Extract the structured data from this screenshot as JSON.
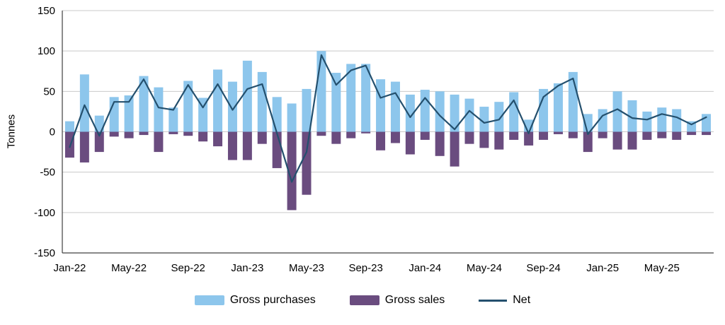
{
  "chart_data": {
    "type": "bar",
    "title": "",
    "ylabel": "Tonnes",
    "ylim": [
      -150,
      150
    ],
    "y_ticks": [
      150,
      100,
      50,
      0,
      -50,
      -100,
      -150
    ],
    "x_tick_every": 4,
    "x_tick_labels": [
      "Jan-22",
      "May-22",
      "Sep-22",
      "Jan-23",
      "May-23",
      "Sep-23",
      "Jan-24",
      "May-24",
      "Sep-24",
      "Jan-25",
      "May-25"
    ],
    "months": [
      "Jan-22",
      "Feb-22",
      "Mar-22",
      "Apr-22",
      "May-22",
      "Jun-22",
      "Jul-22",
      "Aug-22",
      "Sep-22",
      "Oct-22",
      "Nov-22",
      "Dec-22",
      "Jan-23",
      "Feb-23",
      "Mar-23",
      "Apr-23",
      "May-23",
      "Jun-23",
      "Jul-23",
      "Aug-23",
      "Sep-23",
      "Oct-23",
      "Nov-23",
      "Dec-23",
      "Jan-24",
      "Feb-24",
      "Mar-24",
      "Apr-24",
      "May-24",
      "Jun-24",
      "Jul-24",
      "Aug-24",
      "Sep-24",
      "Oct-24",
      "Nov-24",
      "Dec-24",
      "Jan-25",
      "Feb-25",
      "Mar-25",
      "Apr-25",
      "May-25",
      "Jun-25",
      "Jul-25",
      "Aug-25"
    ],
    "series": [
      {
        "name": "Gross purchases",
        "type": "bar",
        "color": "#8DC6EC",
        "values": [
          13,
          71,
          20,
          43,
          45,
          69,
          55,
          30,
          63,
          42,
          77,
          62,
          88,
          74,
          43,
          35,
          53,
          100,
          73,
          84,
          84,
          65,
          62,
          46,
          52,
          50,
          46,
          41,
          31,
          37,
          49,
          15,
          53,
          60,
          74,
          22,
          28,
          50,
          39,
          25,
          30,
          28,
          13,
          22
        ]
      },
      {
        "name": "Gross sales",
        "type": "bar",
        "color": "#6A4C7F",
        "values": [
          -32,
          -38,
          -25,
          -6,
          -8,
          -4,
          -25,
          -3,
          -5,
          -12,
          -18,
          -35,
          -35,
          -15,
          -45,
          -97,
          -78,
          -5,
          -15,
          -8,
          -2,
          -23,
          -14,
          -28,
          -10,
          -30,
          -43,
          -15,
          -20,
          -22,
          -10,
          -17,
          -10,
          -3,
          -8,
          -25,
          -8,
          -22,
          -22,
          -10,
          -8,
          -10,
          -4,
          -4
        ]
      },
      {
        "name": "Net",
        "type": "line",
        "color": "#24506E",
        "values": [
          -19,
          33,
          -5,
          37,
          37,
          65,
          30,
          27,
          58,
          30,
          59,
          27,
          53,
          59,
          -2,
          -62,
          -25,
          95,
          58,
          76,
          82,
          42,
          48,
          18,
          42,
          20,
          3,
          26,
          11,
          15,
          39,
          -2,
          43,
          57,
          66,
          -3,
          20,
          28,
          17,
          15,
          22,
          18,
          9,
          18
        ]
      }
    ],
    "legend_position": "bottom",
    "grid": true,
    "gridline_color": "#C9C9C9",
    "axis_color": "#404040"
  }
}
